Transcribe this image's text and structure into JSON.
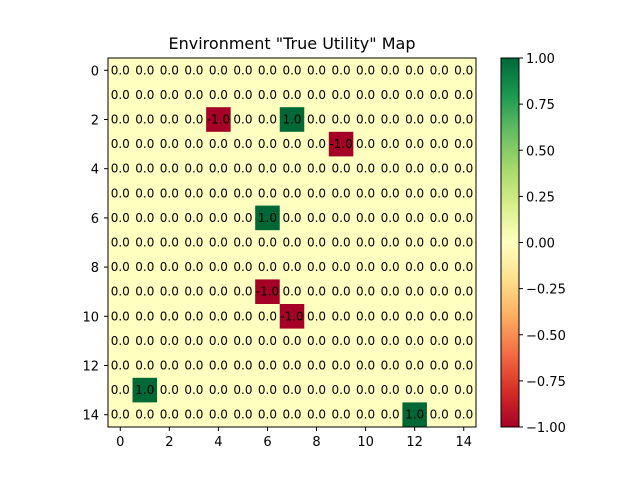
{
  "chart_data": {
    "type": "heatmap",
    "title": "Environment \"True Utility\" Map",
    "xlabel": "",
    "ylabel": "",
    "rows": 15,
    "cols": 15,
    "values": [
      [
        0,
        0,
        0,
        0,
        0,
        0,
        0,
        0,
        0,
        0,
        0,
        0,
        0,
        0,
        0
      ],
      [
        0,
        0,
        0,
        0,
        0,
        0,
        0,
        0,
        0,
        0,
        0,
        0,
        0,
        0,
        0
      ],
      [
        0,
        0,
        0,
        0,
        -1,
        0,
        0,
        1,
        0,
        0,
        0,
        0,
        0,
        0,
        0
      ],
      [
        0,
        0,
        0,
        0,
        0,
        0,
        0,
        0,
        0,
        -1,
        0,
        0,
        0,
        0,
        0
      ],
      [
        0,
        0,
        0,
        0,
        0,
        0,
        0,
        0,
        0,
        0,
        0,
        0,
        0,
        0,
        0
      ],
      [
        0,
        0,
        0,
        0,
        0,
        0,
        0,
        0,
        0,
        0,
        0,
        0,
        0,
        0,
        0
      ],
      [
        0,
        0,
        0,
        0,
        0,
        0,
        1,
        0,
        0,
        0,
        0,
        0,
        0,
        0,
        0
      ],
      [
        0,
        0,
        0,
        0,
        0,
        0,
        0,
        0,
        0,
        0,
        0,
        0,
        0,
        0,
        0
      ],
      [
        0,
        0,
        0,
        0,
        0,
        0,
        0,
        0,
        0,
        0,
        0,
        0,
        0,
        0,
        0
      ],
      [
        0,
        0,
        0,
        0,
        0,
        0,
        -1,
        0,
        0,
        0,
        0,
        0,
        0,
        0,
        0
      ],
      [
        0,
        0,
        0,
        0,
        0,
        0,
        0,
        -1,
        0,
        0,
        0,
        0,
        0,
        0,
        0
      ],
      [
        0,
        0,
        0,
        0,
        0,
        0,
        0,
        0,
        0,
        0,
        0,
        0,
        0,
        0,
        0
      ],
      [
        0,
        0,
        0,
        0,
        0,
        0,
        0,
        0,
        0,
        0,
        0,
        0,
        0,
        0,
        0
      ],
      [
        0,
        1,
        0,
        0,
        0,
        0,
        0,
        0,
        0,
        0,
        0,
        0,
        0,
        0,
        0
      ],
      [
        0,
        0,
        0,
        0,
        0,
        0,
        0,
        0,
        0,
        0,
        0,
        0,
        1,
        0,
        0
      ]
    ],
    "x_ticks": [
      0,
      2,
      4,
      6,
      8,
      10,
      12,
      14
    ],
    "y_ticks": [
      0,
      2,
      4,
      6,
      8,
      10,
      12,
      14
    ],
    "colormap": "RdYlGn",
    "colormap_stops": [
      "#a50026",
      "#d73027",
      "#f46d43",
      "#fdae61",
      "#fee08b",
      "#ffffbf",
      "#d9ef8b",
      "#a6d96a",
      "#66bd63",
      "#1a9850",
      "#006837"
    ],
    "vmin": -1.0,
    "vmax": 1.0,
    "colorbar_ticks": [
      "1.00",
      "0.75",
      "0.50",
      "0.25",
      "0.00",
      "−0.25",
      "−0.50",
      "−0.75",
      "−1.00"
    ],
    "colorbar_tick_values": [
      1.0,
      0.75,
      0.5,
      0.25,
      0.0,
      -0.25,
      -0.5,
      -0.75,
      -1.0
    ],
    "cell_label_format": "one-decimal",
    "legend": "colorbar-right",
    "grid": false
  }
}
